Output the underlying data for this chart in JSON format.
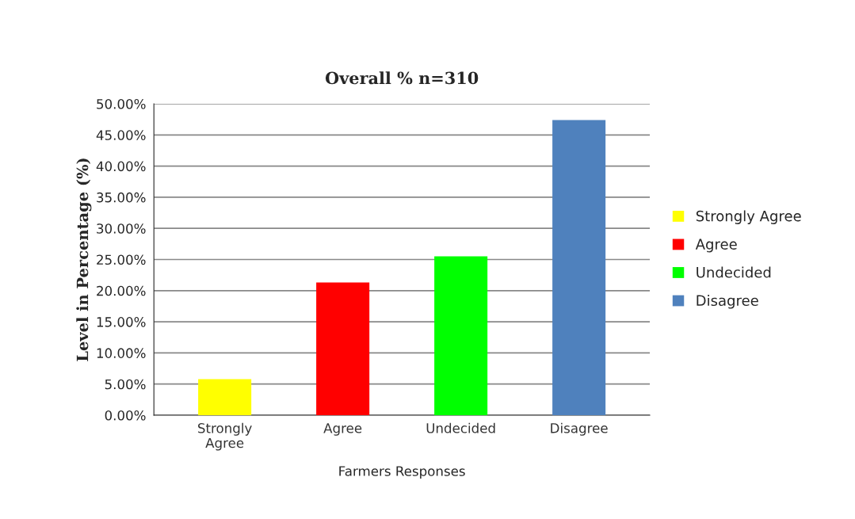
{
  "chart_data": {
    "type": "bar",
    "title": "Overall % n=310",
    "xlabel": "Farmers Responses",
    "ylabel": "Level in Percentage (%)",
    "categories": [
      "Strongly\nAgree",
      "Agree",
      "Undecided",
      "Disagree"
    ],
    "series": [
      {
        "name": "Strongly Agree",
        "color": "#ffff00",
        "values": [
          5.8,
          null,
          null,
          null
        ]
      },
      {
        "name": "Agree",
        "color": "#ff0000",
        "values": [
          null,
          21.3,
          null,
          null
        ]
      },
      {
        "name": "Undecided",
        "color": "#00ff00",
        "values": [
          null,
          null,
          25.5,
          null
        ]
      },
      {
        "name": "Disagree",
        "color": "#4f81bd",
        "values": [
          null,
          null,
          null,
          47.4
        ]
      }
    ],
    "ylim": [
      0,
      50
    ],
    "yticks": [
      {
        "value": 0,
        "label": "0.00%"
      },
      {
        "value": 5,
        "label": "5.00%"
      },
      {
        "value": 10,
        "label": "10.00%"
      },
      {
        "value": 15,
        "label": "15.00%"
      },
      {
        "value": 20,
        "label": "20.00%"
      },
      {
        "value": 25,
        "label": "25.00%"
      },
      {
        "value": 30,
        "label": "30.00%"
      },
      {
        "value": 35,
        "label": "35.00%"
      },
      {
        "value": 40,
        "label": "40.00%"
      },
      {
        "value": 45,
        "label": "45.00%"
      },
      {
        "value": 50,
        "label": "50.00%"
      }
    ],
    "grid": "y",
    "legend": "right"
  }
}
